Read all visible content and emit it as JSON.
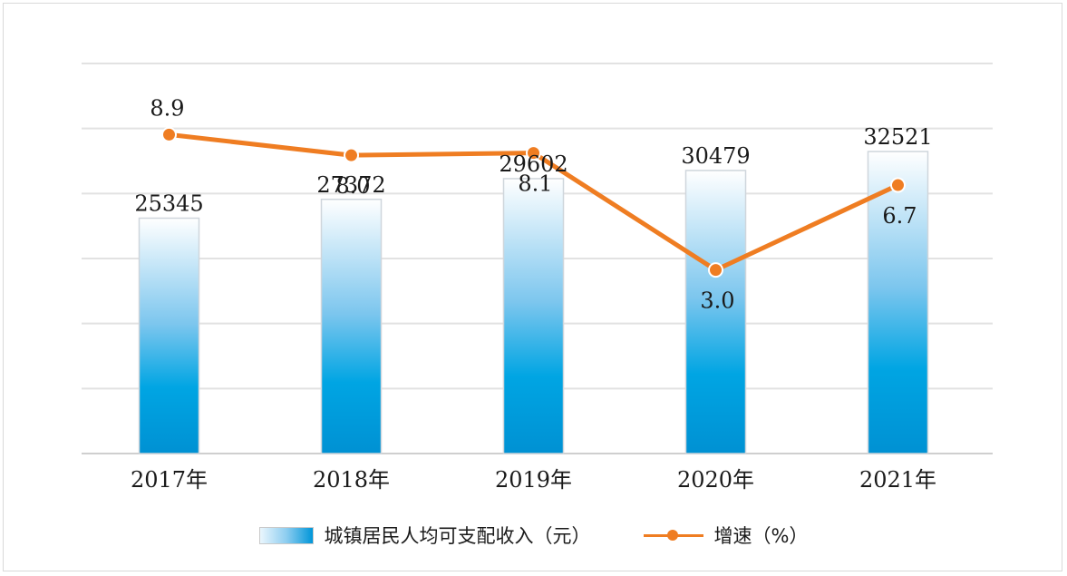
{
  "chart_data": {
    "type": "bar",
    "categories": [
      "2017年",
      "2018年",
      "2019年",
      "2020年",
      "2021年"
    ],
    "series": [
      {
        "name": "城镇居民人均可支配收入（元）",
        "type": "bar",
        "values": [
          25345,
          27372,
          29602,
          30479,
          32521
        ],
        "color": "#0096d9"
      },
      {
        "name": "增速（%）",
        "type": "line",
        "values": [
          8.9,
          8.0,
          8.1,
          3.0,
          6.7
        ],
        "color": "#ef7d22"
      }
    ],
    "bar_labels": [
      "25345",
      "27372",
      "29602",
      "30479",
      "32521"
    ],
    "line_labels": [
      "8.9",
      "8.0",
      "8.1",
      "3.0",
      "6.7"
    ],
    "ylim_bar": [
      0,
      42000
    ],
    "ylim_line": [
      -5,
      12
    ],
    "grid": true,
    "legend_position": "bottom"
  }
}
